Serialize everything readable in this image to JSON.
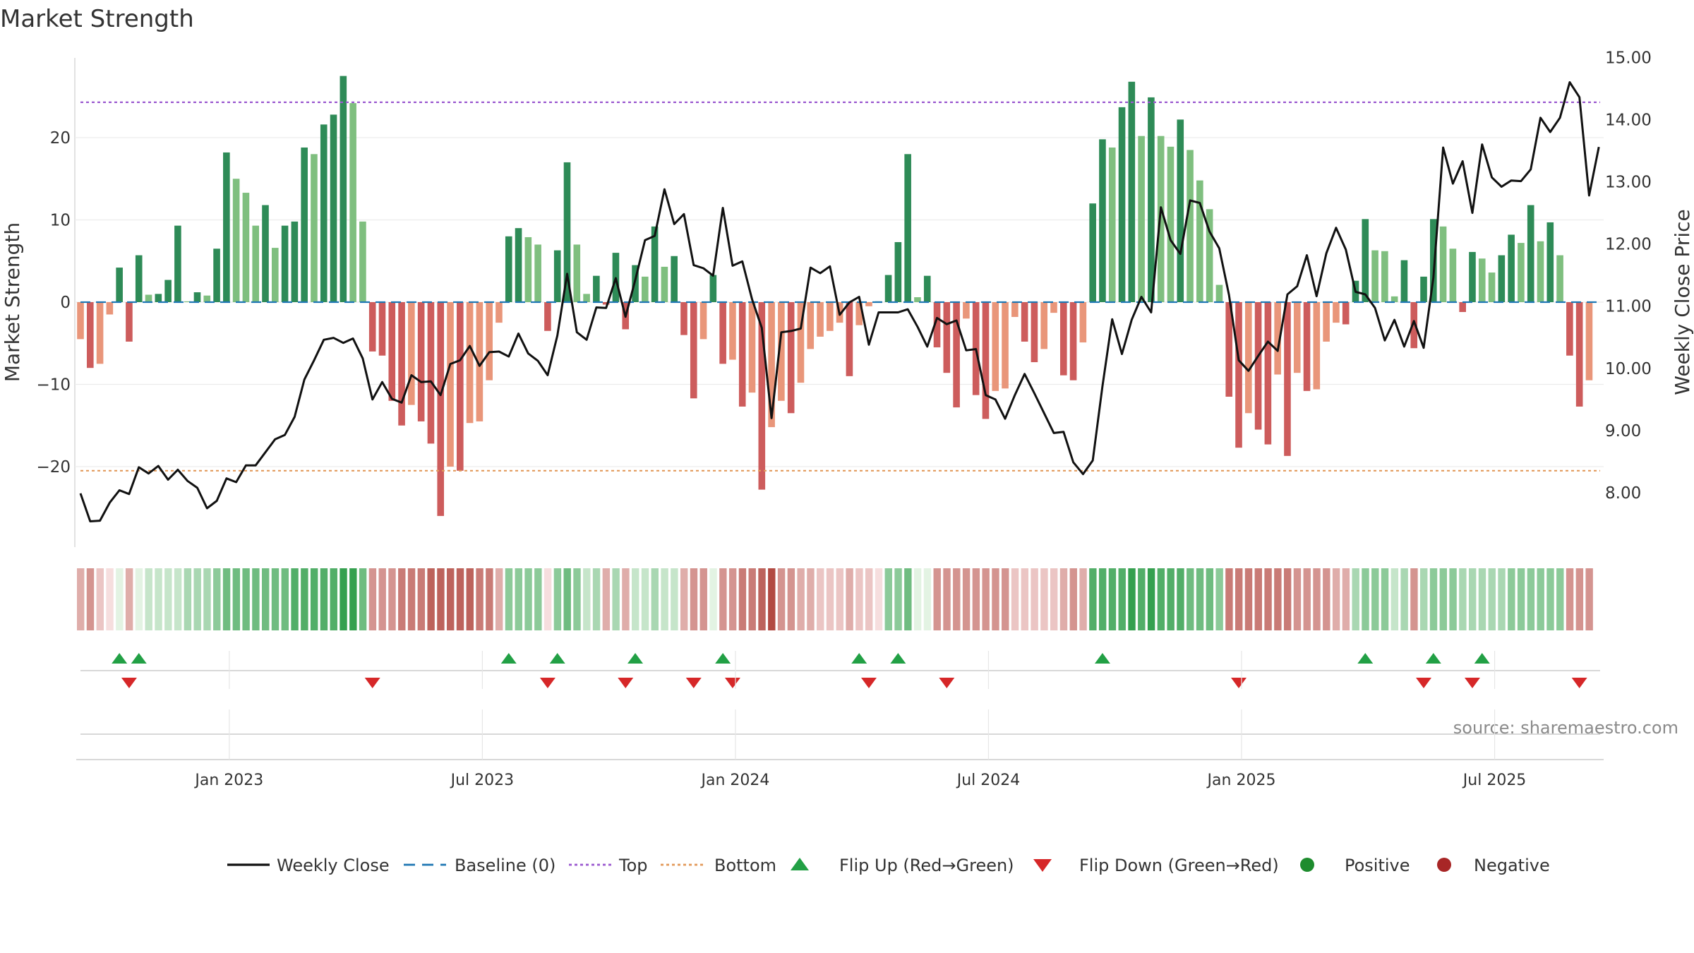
{
  "chart_data": {
    "type": "bar",
    "title": "Market Strength",
    "ylabel_left": "Market Strength",
    "ylabel_right": "Weekly Close Price",
    "left_axis": {
      "ticks": [
        20,
        10,
        0,
        -10,
        -20
      ],
      "tick_labels": [
        "20",
        "10",
        "0",
        "−10",
        "−20"
      ],
      "range": [
        -30,
        30
      ]
    },
    "right_axis": {
      "ticks": [
        8,
        9,
        10,
        11,
        12,
        13,
        14,
        15
      ],
      "tick_labels": [
        "8.00",
        "9.00",
        "10.00",
        "11.00",
        "12.00",
        "13.00",
        "14.00",
        "15.00"
      ],
      "range": [
        7.04,
        15.0
      ]
    },
    "date_ticks": [
      "Jan 2023",
      "Jul 2023",
      "Jan 2024",
      "Jul 2024",
      "Jan 2025",
      "Jul 2025"
    ],
    "date_tick_index": [
      15,
      41,
      67,
      93,
      119,
      145
    ],
    "top_level": 24.3,
    "bottom_level": -20.5,
    "strength": [
      -4.5,
      -8,
      -7.5,
      -1.5,
      4.2,
      -4.8,
      5.7,
      0.9,
      1,
      2.7,
      9.3,
      0.1,
      1.2,
      0.8,
      6.5,
      18.2,
      15,
      13.3,
      9.3,
      11.8,
      6.6,
      9.3,
      9.8,
      18.8,
      18,
      21.6,
      22.8,
      27.5,
      24.2,
      9.8,
      -6,
      -6.5,
      -12,
      -15,
      -12.5,
      -14.5,
      -17.2,
      -26,
      -20,
      -20.5,
      -14.7,
      -14.5,
      -9.5,
      -2.5,
      8,
      9,
      7.9,
      7,
      -3.5,
      6.3,
      17,
      7,
      1,
      3.2,
      -0.3,
      6,
      -3.3,
      4.5,
      3.1,
      9.2,
      4.3,
      5.6,
      -4,
      -11.7,
      -4.5,
      3.3,
      -7.5,
      -7,
      -12.7,
      -11,
      -22.8,
      -15.2,
      -12,
      -13.5,
      -9.8,
      -5.7,
      -4.2,
      -3.5,
      -2.5,
      -9,
      -2.8,
      -0.5,
      0.1,
      3.3,
      7.3,
      18,
      0.6,
      3.2,
      -5.5,
      -8.6,
      -12.8,
      -2,
      -11.3,
      -14.2,
      -10.8,
      -10.5,
      -1.8,
      -4.8,
      -7.3,
      -5.7,
      -1.3,
      -8.9,
      -9.5,
      -4.9,
      12,
      19.8,
      18.8,
      23.7,
      26.8,
      20.2,
      24.9,
      20.2,
      18.9,
      22.2,
      18.5,
      14.8,
      11.3,
      2.1,
      -11.5,
      -17.7,
      -13.5,
      -15.5,
      -17.3,
      -8.8,
      -18.7,
      -8.6,
      -10.8,
      -10.6,
      -4.8,
      -2.5,
      -2.7,
      2.6,
      10.1,
      6.3,
      6.2,
      0.7,
      5.1,
      -5.6,
      3.1,
      10.1,
      9.2,
      6.5,
      -1.2,
      6.1,
      5.3,
      3.6,
      5.7,
      8.2,
      7.2,
      11.8,
      7.4,
      9.7,
      5.7,
      -6.5,
      -12.7,
      -9.5
    ],
    "weekly_close": [
      7.99,
      7.54,
      7.55,
      7.84,
      8.04,
      7.98,
      8.41,
      8.31,
      8.43,
      8.21,
      8.37,
      8.19,
      8.08,
      7.75,
      7.87,
      8.23,
      8.17,
      8.44,
      8.44,
      8.65,
      8.86,
      8.93,
      9.22,
      9.82,
      10.13,
      10.46,
      10.49,
      10.41,
      10.48,
      10.16,
      9.5,
      9.78,
      9.51,
      9.45,
      9.89,
      9.78,
      9.79,
      9.57,
      10.07,
      10.13,
      10.36,
      10.04,
      10.26,
      10.27,
      10.19,
      10.56,
      10.24,
      10.12,
      9.89,
      10.53,
      11.52,
      10.58,
      10.46,
      10.98,
      10.97,
      11.45,
      10.83,
      11.42,
      12.06,
      12.13,
      12.88,
      12.32,
      12.48,
      11.66,
      11.61,
      11.49,
      12.58,
      11.65,
      11.72,
      11.11,
      10.65,
      9.2,
      10.58,
      10.6,
      10.64,
      11.62,
      11.53,
      11.64,
      10.86,
      11.06,
      11.15,
      10.38,
      10.9,
      10.9,
      10.9,
      10.95,
      10.67,
      10.35,
      10.81,
      10.71,
      10.77,
      10.29,
      10.31,
      9.57,
      9.5,
      9.19,
      9.57,
      9.91,
      9.6,
      9.28,
      8.96,
      8.98,
      8.49,
      8.3,
      8.52,
      9.71,
      10.79,
      10.23,
      10.78,
      11.15,
      10.9,
      12.59,
      12.06,
      11.84,
      12.7,
      12.66,
      12.2,
      11.93,
      11.18,
      10.13,
      9.96,
      10.2,
      10.43,
      10.28,
      11.19,
      11.32,
      11.82,
      11.16,
      11.85,
      12.26,
      11.91,
      11.23,
      11.19,
      10.97,
      10.45,
      10.78,
      10.35,
      10.76,
      10.33,
      11.46,
      13.55,
      12.97,
      13.33,
      12.5,
      13.6,
      13.07,
      12.92,
      13.02,
      13.01,
      13.2,
      14.03,
      13.8,
      14.03,
      14.6,
      14.36,
      12.78,
      13.56
    ],
    "zone_shades": [
      4,
      3,
      5,
      6,
      7,
      4,
      7,
      8,
      8,
      8,
      8,
      9,
      9,
      9,
      10,
      11,
      11,
      11,
      11,
      11,
      11,
      11,
      12,
      12,
      12,
      12,
      12,
      13,
      13,
      11,
      3,
      3,
      3,
      2,
      2,
      2,
      1,
      1,
      1,
      1,
      1,
      2,
      2,
      4,
      10,
      10,
      10,
      10,
      6,
      10,
      11,
      10,
      8,
      9,
      4,
      9,
      4,
      8,
      8,
      9,
      8,
      8,
      4,
      3,
      3,
      7,
      3,
      3,
      2,
      2,
      1,
      0,
      3,
      3,
      4,
      4,
      5,
      5,
      5,
      4,
      5,
      5,
      6,
      10,
      10,
      11,
      7,
      7,
      3,
      3,
      3,
      3,
      3,
      3,
      3,
      3,
      5,
      5,
      5,
      5,
      5,
      4,
      3,
      4,
      12,
      12,
      12,
      12,
      13,
      12,
      13,
      12,
      12,
      12,
      11,
      11,
      11,
      10,
      2,
      2,
      2,
      2,
      2,
      2,
      2,
      3,
      3,
      3,
      3,
      4,
      4,
      9,
      10,
      10,
      10,
      8,
      9,
      3,
      9,
      10,
      10,
      10,
      9,
      9,
      9,
      9,
      9,
      10,
      10,
      10,
      10,
      10,
      10,
      3,
      3,
      3
    ],
    "flip_up_index": [
      4,
      6,
      44,
      49,
      57,
      66,
      80,
      84,
      105,
      132,
      139,
      144
    ],
    "flip_down_index": [
      5,
      30,
      48,
      56,
      63,
      67,
      81,
      89,
      119,
      138,
      143,
      154
    ],
    "source_text": "source: sharemaestro.com",
    "legend": [
      {
        "label": "Weekly Close",
        "marker": "line",
        "color": "#111111"
      },
      {
        "label": "Baseline (0)",
        "marker": "dash",
        "color": "#1f77b4"
      },
      {
        "label": "Top",
        "marker": "dot",
        "color": "#9b59d0"
      },
      {
        "label": "Bottom",
        "marker": "dot",
        "color": "#e39a5a"
      },
      {
        "label": "Flip Up (Red→Green)",
        "marker": "triangle-up",
        "color": "#22a045"
      },
      {
        "label": "Flip Down (Green→Red)",
        "marker": "triangle-down",
        "color": "#d62728"
      },
      {
        "label": "Positive",
        "marker": "circle",
        "color": "#1e8c2e"
      },
      {
        "label": "Negative",
        "marker": "circle",
        "color": "#a82626"
      }
    ]
  },
  "colors": {
    "pos_dark": "#2e8b57",
    "pos_light": "#7fbf7f",
    "neg_dark": "#cd5c5c",
    "neg_light": "#e9967a",
    "baseline": "#1f77b4",
    "top_line": "#9b59d0",
    "bottom_line": "#e39a5a",
    "price_line": "#111111",
    "flip_up": "#22a045",
    "flip_down": "#d62728"
  }
}
